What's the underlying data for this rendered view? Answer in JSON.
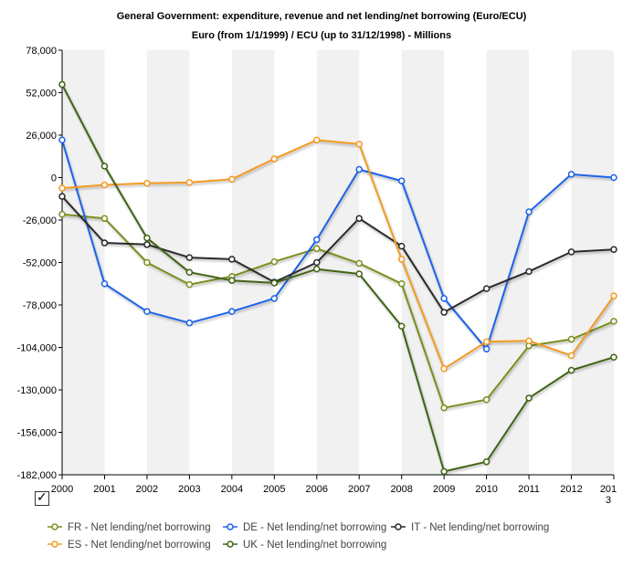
{
  "chart_data": {
    "type": "line",
    "title": "General Government: expenditure, revenue and net lending/net borrowing (Euro/ECU)",
    "subtitle": "Euro (from 1/1/1999) / ECU (up to 31/12/1998) - Millions",
    "xlabel": "",
    "ylabel": "",
    "categories": [
      "2000",
      "2001",
      "2002",
      "2003",
      "2004",
      "2005",
      "2006",
      "2007",
      "2008",
      "2009",
      "2010",
      "2011",
      "2012",
      "2013"
    ],
    "category_labels": [
      "2000",
      "2001",
      "2002",
      "2003",
      "2004",
      "2005",
      "2006",
      "2007",
      "2008",
      "2009",
      "2010",
      "2011",
      "2012",
      "201\n3"
    ],
    "ylim": [
      -182000,
      78000
    ],
    "yticks": [
      78000,
      52000,
      26000,
      0,
      -26000,
      -52000,
      -78000,
      -104000,
      -130000,
      -156000,
      -182000
    ],
    "ytick_labels": [
      "78,000",
      "52,000",
      "26,000",
      "0",
      "-26,000",
      "-52,000",
      "-78,000",
      "-104,000",
      "-130,000",
      "-156,000",
      "-182,000"
    ],
    "grid": "alternating vertical bands",
    "legend_position": "bottom",
    "series": [
      {
        "name": "FR - Net lending/net borrowing",
        "color": "#7a8f1f",
        "values": [
          -22500,
          -25000,
          -52000,
          -65500,
          -60500,
          -51500,
          -43500,
          -52500,
          -65000,
          -141000,
          -136000,
          -103000,
          -99000,
          -88000
        ]
      },
      {
        "name": "DE - Net lending/net borrowing",
        "color": "#1e63e9",
        "values": [
          23000,
          -65000,
          -82000,
          -89000,
          -82000,
          -74000,
          -38000,
          5000,
          -2000,
          -74000,
          -105000,
          -21000,
          2000,
          0
        ]
      },
      {
        "name": "IT - Net lending/net borrowing",
        "color": "#2a2a2a",
        "values": [
          -11500,
          -40000,
          -41000,
          -49000,
          -50000,
          -64000,
          -52000,
          -25000,
          -42000,
          -82500,
          -68000,
          -57500,
          -45500,
          -44000
        ]
      },
      {
        "name": "ES - Net lending/net borrowing",
        "color": "#f39a22",
        "values": [
          -6500,
          -4500,
          -3500,
          -3000,
          -1000,
          11500,
          23000,
          20500,
          -50000,
          -117000,
          -100500,
          -100000,
          -109000,
          -72500
        ]
      },
      {
        "name": "UK - Net lending/net borrowing",
        "color": "#3f6312",
        "values": [
          57000,
          7000,
          -37000,
          -58000,
          -63000,
          -64500,
          -56000,
          -59000,
          -91000,
          -180000,
          -174000,
          -135000,
          -118000,
          -110000
        ]
      }
    ]
  },
  "legend": {
    "items": [
      {
        "label": "FR - Net lending/net borrowing"
      },
      {
        "label": "DE - Net lending/net borrowing"
      },
      {
        "label": "IT - Net lending/net borrowing"
      },
      {
        "label": "ES - Net lending/net borrowing"
      },
      {
        "label": "UK - Net lending/net borrowing"
      }
    ]
  },
  "controls": {
    "checkbox_checked": true,
    "checkbox_icon": "checkmark-icon"
  }
}
